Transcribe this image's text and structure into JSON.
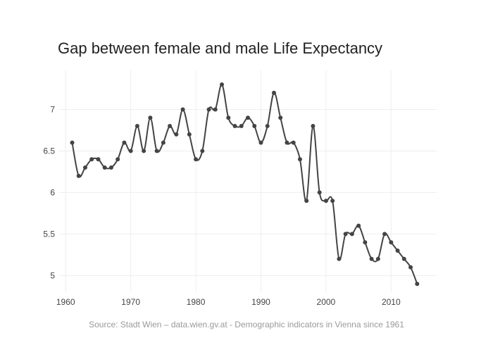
{
  "chart_data": {
    "type": "line",
    "title": "Gap between female and male Life Expectancy",
    "source": "Source: Stadt Wien – data.wien.gv.at - Demographic indicators in Vienna since 1961",
    "xlabel": "",
    "ylabel": "",
    "x_ticks": [
      1960,
      1970,
      1980,
      1990,
      2000,
      2010
    ],
    "x_tick_labels": [
      "1960",
      "1970",
      "1980",
      "1990",
      "2000",
      "2010"
    ],
    "y_ticks": [
      5,
      5.5,
      6,
      6.5,
      7
    ],
    "y_tick_labels": [
      "5",
      "5.5",
      "6",
      "6.5",
      "7"
    ],
    "xlim": [
      1959,
      2017
    ],
    "ylim": [
      4.8,
      7.47
    ],
    "grid": true,
    "line_shape": "spline",
    "series_color": "#444444",
    "series": [
      {
        "x": [
          1961,
          1962,
          1963,
          1964,
          1965,
          1966,
          1967,
          1968,
          1969,
          1970,
          1971,
          1972,
          1973,
          1974,
          1975,
          1976,
          1977,
          1978,
          1979,
          1980,
          1981,
          1982,
          1983,
          1984,
          1985,
          1986,
          1987,
          1988,
          1989,
          1990,
          1991,
          1992,
          1993,
          1994,
          1995,
          1996,
          1997,
          1998,
          1999,
          2000,
          2001,
          2002,
          2003,
          2004,
          2005,
          2006,
          2007,
          2008,
          2009,
          2010,
          2011,
          2012,
          2013,
          2014
        ],
        "values": [
          6.6,
          6.2,
          6.3,
          6.4,
          6.4,
          6.3,
          6.3,
          6.4,
          6.6,
          6.5,
          6.8,
          6.5,
          6.9,
          6.5,
          6.6,
          6.8,
          6.7,
          7.0,
          6.7,
          6.4,
          6.5,
          7.0,
          7.0,
          7.3,
          6.9,
          6.8,
          6.8,
          6.9,
          6.8,
          6.6,
          6.8,
          7.2,
          6.9,
          6.6,
          6.6,
          6.4,
          5.9,
          6.8,
          6.0,
          5.9,
          5.9,
          5.2,
          5.5,
          5.5,
          5.6,
          5.4,
          5.2,
          5.2,
          5.5,
          5.4,
          5.3,
          5.2,
          5.1,
          4.9
        ]
      }
    ]
  }
}
